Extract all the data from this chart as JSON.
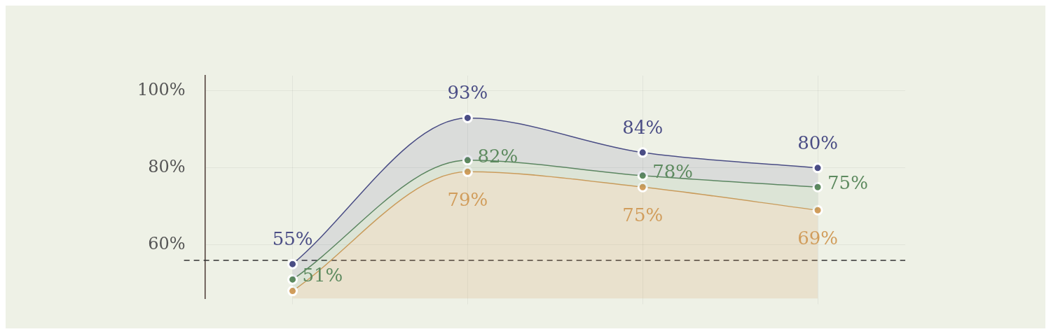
{
  "chart_data": {
    "type": "area",
    "categories": [
      null,
      null,
      null,
      null
    ],
    "series": [
      {
        "name": null,
        "color": "#4a4d85",
        "values": [
          55,
          93,
          84,
          80
        ],
        "value_labels": [
          "55%",
          "93%",
          "84%",
          "80%"
        ]
      },
      {
        "name": null,
        "color": "#5d8a5f",
        "values": [
          51,
          82,
          78,
          75
        ],
        "value_labels": [
          "51%",
          "82%",
          "78%",
          "75%"
        ]
      },
      {
        "name": null,
        "color": "#d19d5c",
        "values": [
          48,
          79,
          75,
          69
        ],
        "value_labels": [
          null,
          "79%",
          "75%",
          "69%"
        ]
      }
    ],
    "ylim": [
      46,
      104
    ],
    "yticks": [
      {
        "value": 60,
        "label": "60%"
      },
      {
        "value": 80,
        "label": "80%"
      },
      {
        "value": 100,
        "label": "100%"
      }
    ],
    "ref_lines": [
      {
        "axis": "y",
        "value": 56,
        "line_style": "dashed",
        "color": "#333333"
      }
    ],
    "grid": true,
    "marker": "circle",
    "line_style": "solid",
    "tick_labels": "y",
    "legend": false
  }
}
